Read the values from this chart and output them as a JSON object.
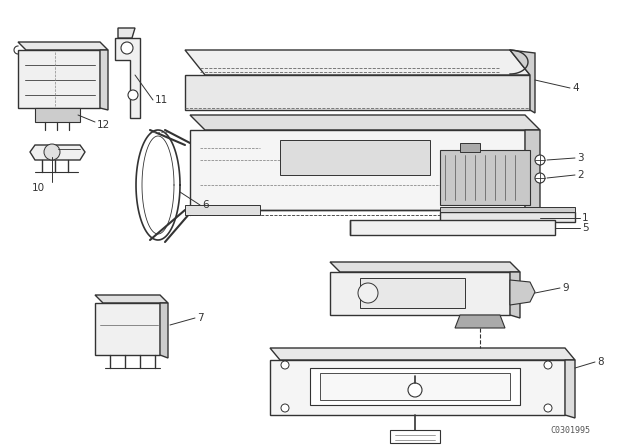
{
  "background_color": "#ffffff",
  "line_color": "#333333",
  "watermark": "C0301995",
  "fig_width": 6.4,
  "fig_height": 4.48,
  "dpi": 100
}
